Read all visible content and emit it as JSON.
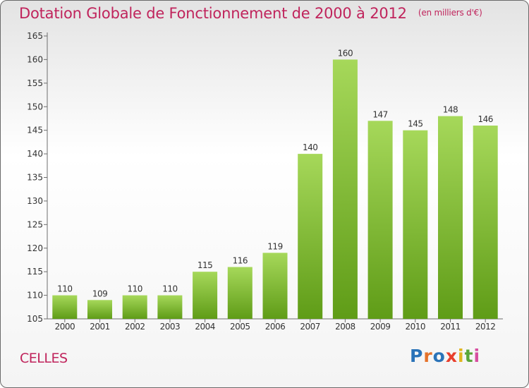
{
  "title": "Dotation Globale de Fonctionnement de 2000 à 2012",
  "unit": "(en milliers d'€)",
  "commune": "CELLES",
  "logo": "Proxiti",
  "colors": {
    "title": "#c0245c",
    "bar_light": "#a6d85a",
    "bar_dark": "#5f9c17",
    "logo_letters": [
      "#2a73b8",
      "#e5722a",
      "#2a73b8",
      "#e83f2d",
      "#e1b51f",
      "#59a63a",
      "#d74ea0"
    ]
  },
  "chart_data": {
    "type": "bar",
    "title": "Dotation Globale de Fonctionnement de 2000 à 2012",
    "subtitle": "(en milliers d'€)",
    "categories": [
      "2000",
      "2001",
      "2002",
      "2003",
      "2004",
      "2005",
      "2006",
      "2007",
      "2008",
      "2009",
      "2010",
      "2011",
      "2012"
    ],
    "values": [
      110,
      109,
      110,
      110,
      115,
      116,
      119,
      140,
      160,
      147,
      145,
      148,
      146
    ],
    "ylim": [
      105,
      165
    ],
    "yticks": [
      105,
      110,
      115,
      120,
      125,
      130,
      135,
      140,
      145,
      150,
      155,
      160,
      165
    ],
    "grid": false,
    "data_labels": true
  }
}
